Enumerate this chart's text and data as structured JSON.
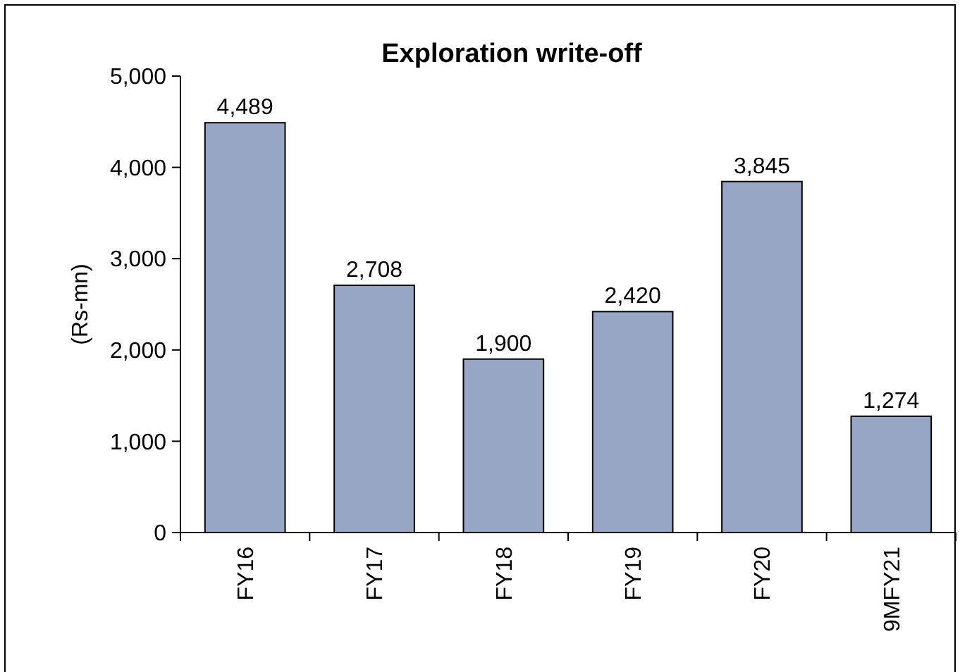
{
  "chart_data": {
    "type": "bar",
    "title": "Exploration write-off",
    "ylabel": "(Rs-mn)",
    "categories": [
      "FY16",
      "FY17",
      "FY18",
      "FY19",
      "FY20",
      "9MFY21"
    ],
    "values": [
      4489,
      2708,
      1900,
      2420,
      3845,
      1274
    ],
    "color": "#98a6c6",
    "ylim": [
      0,
      5000
    ],
    "yticks": [
      {
        "value": 0,
        "label": "0"
      },
      {
        "value": 1000,
        "label": "1,000"
      },
      {
        "value": 2000,
        "label": "2,000"
      },
      {
        "value": 3000,
        "label": "3,000"
      },
      {
        "value": 4000,
        "label": "4,000"
      },
      {
        "value": 5000,
        "label": "5,000"
      }
    ],
    "value_labels": [
      "4,489",
      "2,708",
      "1,900",
      "2,420",
      "3,845",
      "1,274"
    ],
    "grid": false
  }
}
